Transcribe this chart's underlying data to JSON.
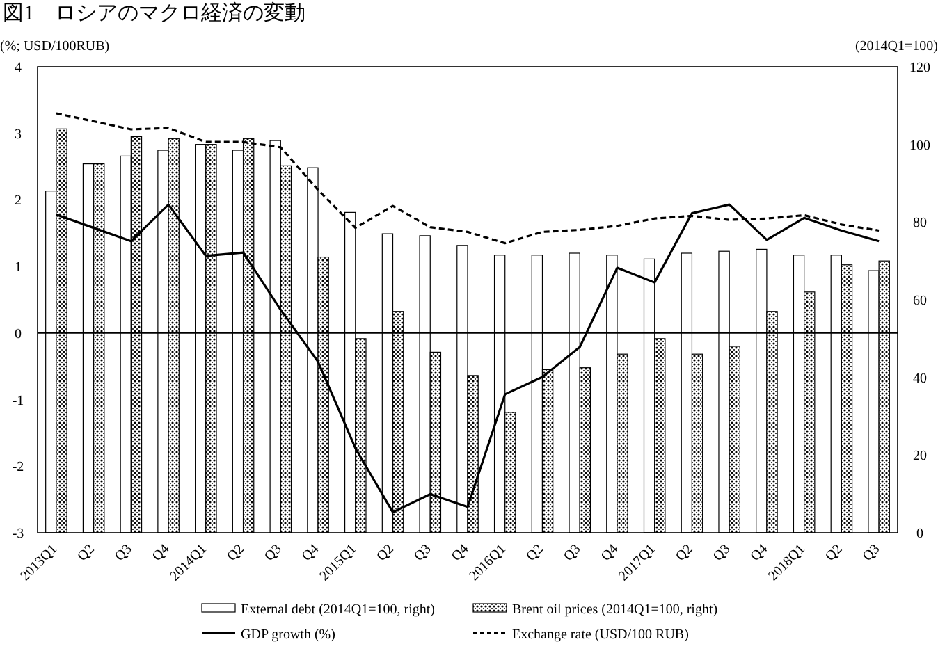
{
  "chart_data": {
    "type": "bar",
    "title": "図1　ロシアのマクロ経済の変動",
    "ylabel": "(%; USD/100RUB)",
    "y2label": "(2014Q1=100)",
    "categories": [
      "2013Q1",
      "Q2",
      "Q3",
      "Q4",
      "2014Q1",
      "Q2",
      "Q3",
      "Q4",
      "2015Q1",
      "Q2",
      "Q3",
      "Q4",
      "2016Q1",
      "Q2",
      "Q3",
      "Q4",
      "2017Q1",
      "Q2",
      "Q3",
      "Q4",
      "2018Q1",
      "Q2",
      "Q3"
    ],
    "series": [
      {
        "name": "External debt (2014Q1=100, right)",
        "axis": "y2",
        "color": "#ffffff",
        "values": [
          88,
          95,
          97,
          98.5,
          100,
          98.5,
          101,
          94,
          82.5,
          77,
          76.5,
          74,
          71.5,
          71.5,
          72,
          71.5,
          70.5,
          72,
          72.5,
          73,
          71.5,
          71.5,
          67.5
        ]
      },
      {
        "name": "Brent oil prices (2014Q1=100, right)",
        "axis": "y2",
        "color": "#000000",
        "values": [
          104,
          95,
          102,
          101.5,
          100,
          101.5,
          94.5,
          71,
          50,
          57,
          46.5,
          40.5,
          31,
          42,
          42.5,
          46,
          50,
          46,
          48,
          57,
          62,
          69,
          70
        ]
      },
      {
        "name": "GDP growth (%)",
        "type": "line",
        "line_style": "solid",
        "color": "#000000",
        "values": [
          1.78,
          1.58,
          1.38,
          1.93,
          1.16,
          1.21,
          0.35,
          -0.43,
          -1.73,
          -2.69,
          -2.42,
          -2.61,
          -0.92,
          -0.66,
          -0.21,
          0.98,
          0.76,
          1.8,
          1.93,
          1.4,
          1.73,
          1.54,
          1.38
        ]
      },
      {
        "name": "Exchange rate (USD/100 RUB)",
        "type": "line",
        "line_style": "dashed",
        "color": "#000000",
        "values": [
          3.3,
          3.18,
          3.06,
          3.08,
          2.87,
          2.87,
          2.79,
          2.15,
          1.58,
          1.91,
          1.59,
          1.52,
          1.35,
          1.52,
          1.55,
          1.61,
          1.72,
          1.76,
          1.7,
          1.72,
          1.77,
          1.63,
          1.54
        ]
      }
    ],
    "ylim": [
      -3,
      4
    ],
    "yticks": [
      -3,
      -2,
      -1,
      0,
      1,
      2,
      3,
      4
    ],
    "y2lim": [
      0,
      120
    ],
    "y2ticks": [
      0,
      20,
      40,
      60,
      80,
      100,
      120
    ],
    "ref_lines": [
      {
        "axis": "y",
        "value": 0,
        "color": "#000000"
      }
    ],
    "legend": "bottom"
  }
}
